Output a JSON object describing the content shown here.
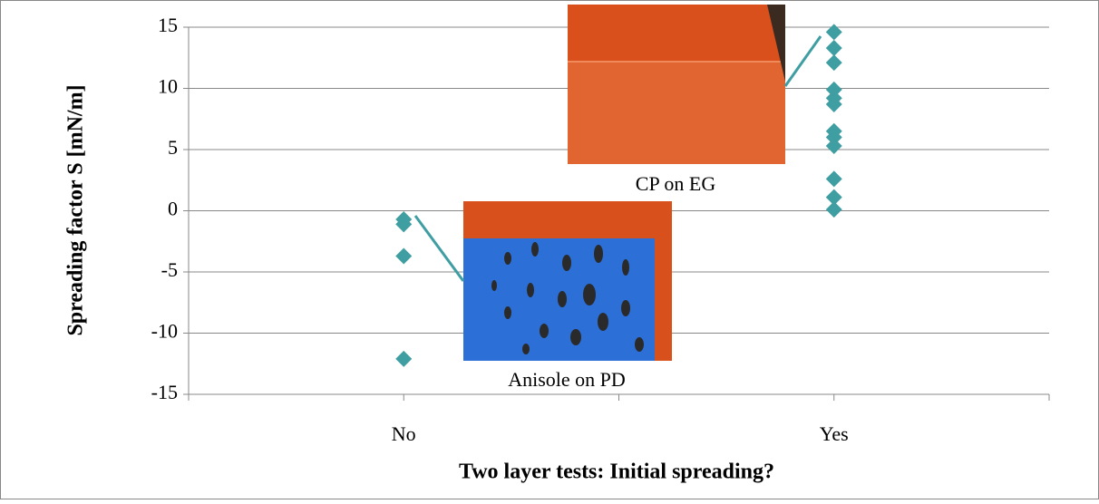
{
  "chart_data": {
    "type": "scatter",
    "x_label": "Two layer tests: Initial spreading?",
    "y_label": "Spreading factor S [mN/m]",
    "categories": [
      "No",
      "Yes"
    ],
    "values": [
      [
        -0.7,
        -1.1,
        -3.7,
        -12.1
      ],
      [
        14.6,
        13.3,
        12.1,
        9.9,
        9.2,
        8.7,
        6.5,
        6.0,
        5.3,
        2.6,
        1.1,
        0.1
      ]
    ],
    "color": "#3f9ea2",
    "ylim": [
      -15,
      15
    ],
    "yticks": [
      -15,
      -10,
      -5,
      0,
      5,
      10,
      15
    ],
    "grid": true,
    "annotations": [
      "CP on EG",
      "Anisole on PD"
    ]
  }
}
